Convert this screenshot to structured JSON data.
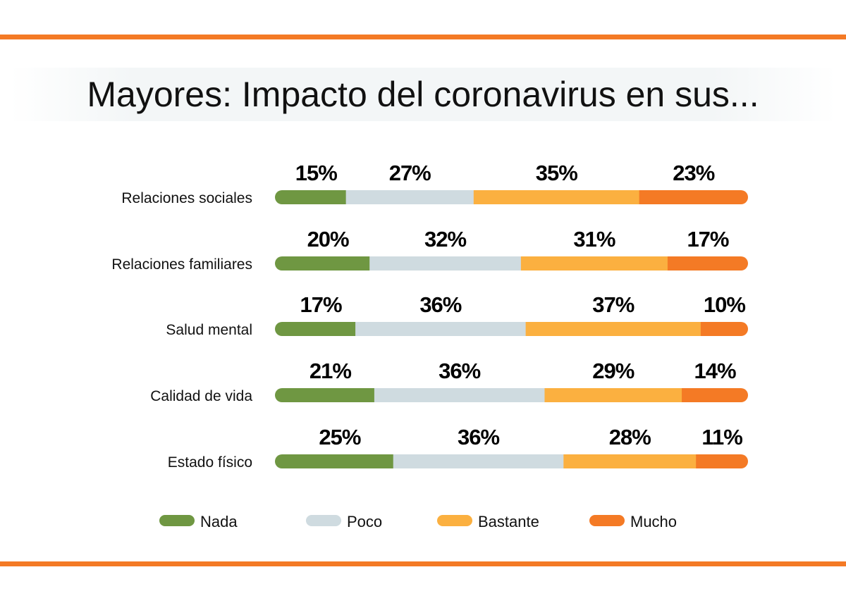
{
  "chart_data": {
    "type": "bar",
    "orientation": "horizontal",
    "stacked": true,
    "title": "Mayores: Impacto del coronavirus en sus...",
    "categories": [
      "Relaciones sociales",
      "Relaciones familiares",
      "Salud mental",
      "Calidad de vida",
      "Estado físico"
    ],
    "series": [
      {
        "name": "Nada",
        "color": "#6f9742",
        "values": [
          15,
          20,
          17,
          21,
          25
        ],
        "labels": [
          "15%",
          "20%",
          "17%",
          "21%",
          "25%"
        ]
      },
      {
        "name": "Poco",
        "color": "#cfdbe0",
        "values": [
          27,
          32,
          36,
          36,
          36
        ],
        "labels": [
          "27%",
          "32%",
          "36%",
          "36%",
          "36%"
        ]
      },
      {
        "name": "Bastante",
        "color": "#fbb040",
        "values": [
          35,
          31,
          37,
          29,
          28
        ],
        "labels": [
          "35%",
          "31%",
          "37%",
          "29%",
          "28%"
        ]
      },
      {
        "name": "Mucho",
        "color": "#f47a25",
        "values": [
          23,
          17,
          10,
          14,
          11
        ],
        "labels": [
          "23%",
          "17%",
          "10%",
          "14%",
          "11%"
        ]
      }
    ],
    "xlim": [
      0,
      100
    ],
    "grid": false,
    "legend": "bottom"
  },
  "accent_color": "#f47a25"
}
